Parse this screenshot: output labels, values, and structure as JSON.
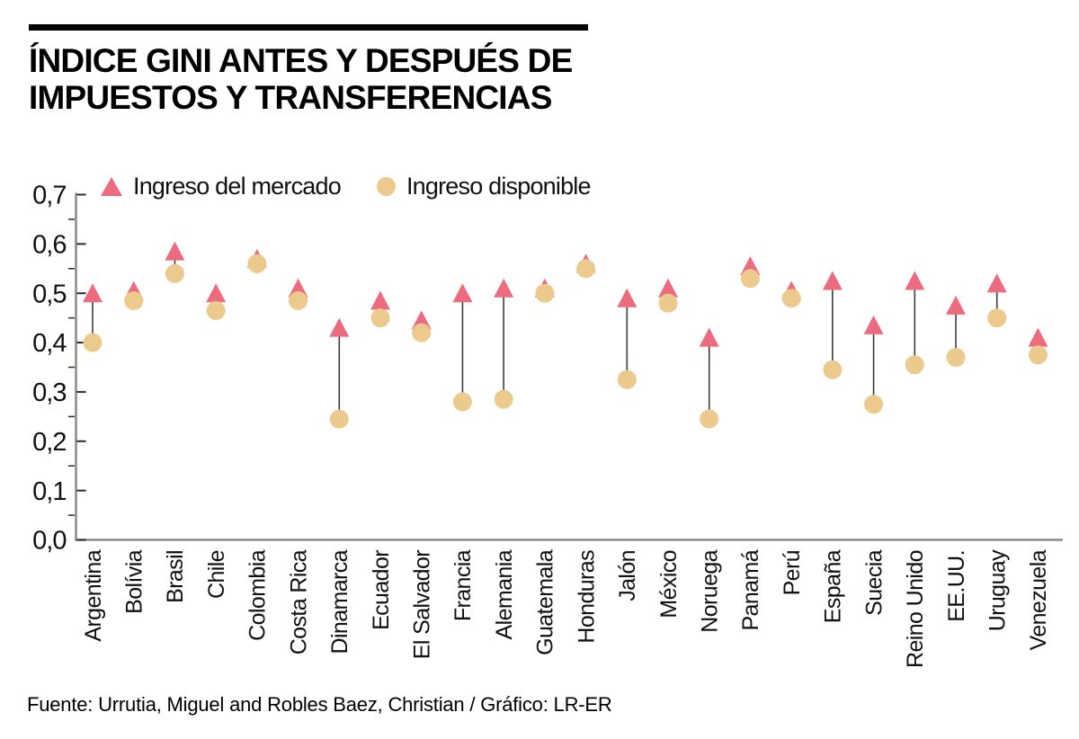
{
  "header": {
    "title_line1": "ÍNDICE GINI ANTES Y DESPUÉS DE",
    "title_line2": "IMPUESTOS Y TRANSFERENCIAS"
  },
  "legend": {
    "market_label": "Ingreso del mercado",
    "disposable_label": "Ingreso disponible"
  },
  "footer": {
    "source": "Fuente: Urrutia, Miguel and Robles Baez, Christian / Gráfico: LR-ER"
  },
  "colors": {
    "market": "#ed6b7f",
    "disposable": "#ecca8e",
    "connector": "#3c3c3c",
    "axis_line": "#8a8a8a",
    "tick": "#2b2b2b",
    "title_bar": "#000000",
    "text": "#111111"
  },
  "chart_data": {
    "type": "scatter",
    "title": "Índice Gini antes y después de impuestos y transferencias",
    "xlabel": "",
    "ylabel": "",
    "ylim": [
      0.0,
      0.7
    ],
    "y_ticks": [
      0.0,
      0.1,
      0.2,
      0.3,
      0.4,
      0.5,
      0.6,
      0.7
    ],
    "y_tick_labels": [
      "0,0",
      "0,1",
      "0,2",
      "0,3",
      "0,4",
      "0,5",
      "0,6",
      "0,7"
    ],
    "minor_tick_step": 0.05,
    "grid": false,
    "legend_position": "top-left",
    "categories": [
      "Argentina",
      "Bolívia",
      "Brasil",
      "Chile",
      "Colombia",
      "Costa Rica",
      "Dinamarca",
      "Ecuador",
      "El Salvador",
      "Francia",
      "Alemania",
      "Guatemala",
      "Honduras",
      "Jalón",
      "México",
      "Noruega",
      "Panamá",
      "Perú",
      "España",
      "Suecia",
      "Reino Unido",
      "EE.UU.",
      "Uruguay",
      "Venezuela"
    ],
    "series": [
      {
        "name": "Ingreso del mercado",
        "marker": "triangle",
        "color": "#ed6b7f",
        "values": [
          0.5,
          0.505,
          0.585,
          0.5,
          0.57,
          0.51,
          0.43,
          0.485,
          0.445,
          0.5,
          0.51,
          0.51,
          0.56,
          0.49,
          0.51,
          0.41,
          0.555,
          0.505,
          0.525,
          0.435,
          0.525,
          0.475,
          0.52,
          0.41
        ]
      },
      {
        "name": "Ingreso disponible",
        "marker": "circle",
        "color": "#ecca8e",
        "values": [
          0.4,
          0.485,
          0.54,
          0.465,
          0.56,
          0.485,
          0.245,
          0.45,
          0.42,
          0.28,
          0.285,
          0.5,
          0.55,
          0.325,
          0.48,
          0.245,
          0.53,
          0.49,
          0.345,
          0.275,
          0.355,
          0.37,
          0.45,
          0.375
        ]
      }
    ]
  }
}
